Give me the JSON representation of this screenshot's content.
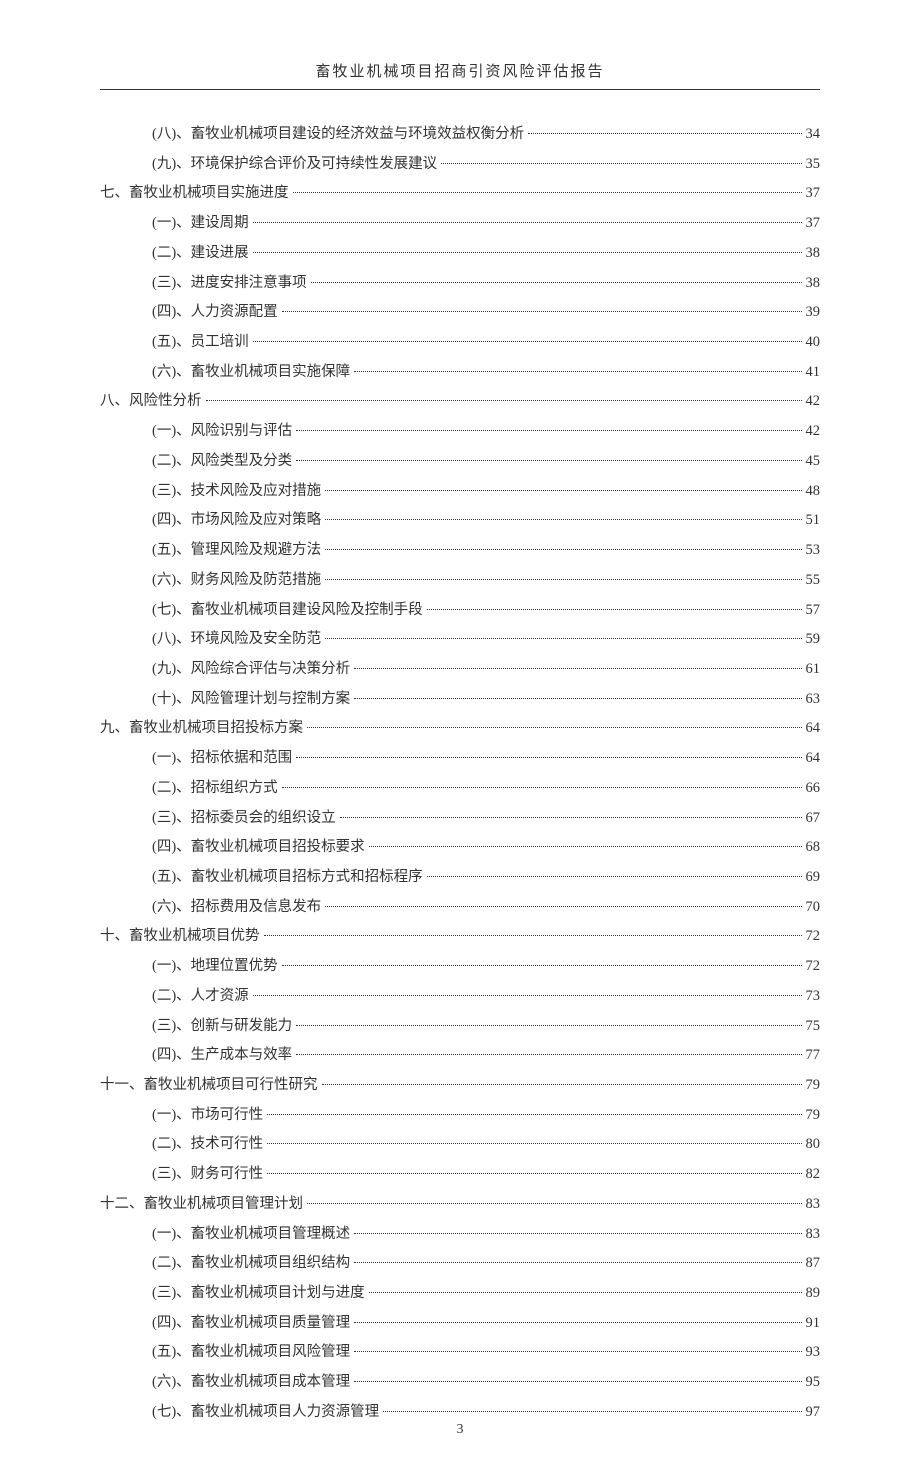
{
  "header": {
    "title": "畜牧业机械项目招商引资风险评估报告"
  },
  "footer": {
    "page_number": "3"
  },
  "toc": {
    "entries": [
      {
        "level": 2,
        "label": "(八)、畜牧业机械项目建设的经济效益与环境效益权衡分析",
        "page": "34"
      },
      {
        "level": 2,
        "label": "(九)、环境保护综合评价及可持续性发展建议",
        "page": "35"
      },
      {
        "level": 1,
        "label": "七、畜牧业机械项目实施进度",
        "page": "37"
      },
      {
        "level": 2,
        "label": "(一)、建设周期",
        "page": "37"
      },
      {
        "level": 2,
        "label": "(二)、建设进展",
        "page": "38"
      },
      {
        "level": 2,
        "label": "(三)、进度安排注意事项",
        "page": "38"
      },
      {
        "level": 2,
        "label": "(四)、人力资源配置",
        "page": "39"
      },
      {
        "level": 2,
        "label": "(五)、员工培训",
        "page": "40"
      },
      {
        "level": 2,
        "label": "(六)、畜牧业机械项目实施保障",
        "page": "41"
      },
      {
        "level": 1,
        "label": "八、风险性分析",
        "page": "42"
      },
      {
        "level": 2,
        "label": "(一)、风险识别与评估",
        "page": "42"
      },
      {
        "level": 2,
        "label": "(二)、风险类型及分类",
        "page": "45"
      },
      {
        "level": 2,
        "label": "(三)、技术风险及应对措施",
        "page": "48"
      },
      {
        "level": 2,
        "label": "(四)、市场风险及应对策略",
        "page": "51"
      },
      {
        "level": 2,
        "label": "(五)、管理风险及规避方法",
        "page": "53"
      },
      {
        "level": 2,
        "label": "(六)、财务风险及防范措施",
        "page": "55"
      },
      {
        "level": 2,
        "label": "(七)、畜牧业机械项目建设风险及控制手段",
        "page": "57"
      },
      {
        "level": 2,
        "label": "(八)、环境风险及安全防范",
        "page": "59"
      },
      {
        "level": 2,
        "label": "(九)、风险综合评估与决策分析",
        "page": "61"
      },
      {
        "level": 2,
        "label": "(十)、风险管理计划与控制方案",
        "page": "63"
      },
      {
        "level": 1,
        "label": "九、畜牧业机械项目招投标方案",
        "page": "64"
      },
      {
        "level": 2,
        "label": "(一)、招标依据和范围",
        "page": "64"
      },
      {
        "level": 2,
        "label": "(二)、招标组织方式",
        "page": "66"
      },
      {
        "level": 2,
        "label": "(三)、招标委员会的组织设立",
        "page": "67"
      },
      {
        "level": 2,
        "label": "(四)、畜牧业机械项目招投标要求",
        "page": "68"
      },
      {
        "level": 2,
        "label": "(五)、畜牧业机械项目招标方式和招标程序",
        "page": "69"
      },
      {
        "level": 2,
        "label": "(六)、招标费用及信息发布",
        "page": "70"
      },
      {
        "level": 1,
        "label": "十、畜牧业机械项目优势",
        "page": "72"
      },
      {
        "level": 2,
        "label": "(一)、地理位置优势",
        "page": "72"
      },
      {
        "level": 2,
        "label": "(二)、人才资源",
        "page": "73"
      },
      {
        "level": 2,
        "label": "(三)、创新与研发能力",
        "page": "75"
      },
      {
        "level": 2,
        "label": "(四)、生产成本与效率",
        "page": "77"
      },
      {
        "level": 1,
        "label": "十一、畜牧业机械项目可行性研究",
        "page": "79"
      },
      {
        "level": 2,
        "label": "(一)、市场可行性",
        "page": "79"
      },
      {
        "level": 2,
        "label": "(二)、技术可行性",
        "page": "80"
      },
      {
        "level": 2,
        "label": "(三)、财务可行性",
        "page": "82"
      },
      {
        "level": 1,
        "label": "十二、畜牧业机械项目管理计划",
        "page": "83"
      },
      {
        "level": 2,
        "label": "(一)、畜牧业机械项目管理概述",
        "page": "83"
      },
      {
        "level": 2,
        "label": "(二)、畜牧业机械项目组织结构",
        "page": "87"
      },
      {
        "level": 2,
        "label": "(三)、畜牧业机械项目计划与进度",
        "page": "89"
      },
      {
        "level": 2,
        "label": "(四)、畜牧业机械项目质量管理",
        "page": "91"
      },
      {
        "level": 2,
        "label": "(五)、畜牧业机械项目风险管理",
        "page": "93"
      },
      {
        "level": 2,
        "label": "(六)、畜牧业机械项目成本管理",
        "page": "95"
      },
      {
        "level": 2,
        "label": "(七)、畜牧业机械项目人力资源管理",
        "page": "97"
      }
    ]
  },
  "colors": {
    "text": "#333333",
    "background": "#ffffff",
    "line": "#333333"
  },
  "typography": {
    "header_fontsize": 15,
    "body_fontsize": 14.5,
    "line_height": 2.05,
    "font_family": "SimSun"
  }
}
